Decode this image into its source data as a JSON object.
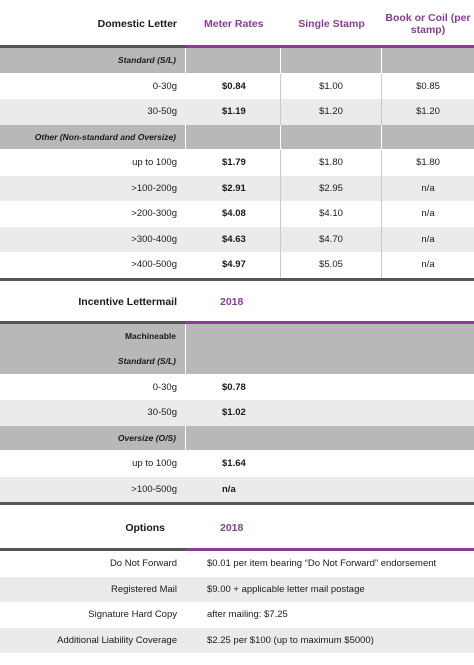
{
  "domestic": {
    "header": {
      "title": "Domestic Letter",
      "col1": "Meter Rates",
      "col2": "Single Stamp",
      "col3": "Book or Coil (per stamp)"
    },
    "standard_label": "Standard (S/L)",
    "standard_rows": [
      {
        "weight": "0-30g",
        "meter": "$0.84",
        "single": "$1.00",
        "book": "$0.85"
      },
      {
        "weight": "30-50g",
        "meter": "$1.19",
        "single": "$1.20",
        "book": "$1.20"
      }
    ],
    "other_label": "Other (Non-standard and Oversize)",
    "other_rows": [
      {
        "weight": "up to 100g",
        "meter": "$1.79",
        "single": "$1.80",
        "book": "$1.80"
      },
      {
        "weight": ">100-200g",
        "meter": "$2.91",
        "single": "$2.95",
        "book": "n/a"
      },
      {
        "weight": ">200-300g",
        "meter": "$4.08",
        "single": "$4.10",
        "book": "n/a"
      },
      {
        "weight": ">300-400g",
        "meter": "$4.63",
        "single": "$4.70",
        "book": "n/a"
      },
      {
        "weight": ">400-500g",
        "meter": "$4.97",
        "single": "$5.05",
        "book": "n/a"
      }
    ]
  },
  "incentive": {
    "header": {
      "title": "Incentive Lettermail",
      "year": "2018"
    },
    "machineable_label": "Machineable",
    "standard_label": "Standard (S/L)",
    "standard_rows": [
      {
        "weight": "0-30g",
        "rate": "$0.78"
      },
      {
        "weight": "30-50g",
        "rate": "$1.02"
      }
    ],
    "oversize_label": "Oversize (O/S)",
    "oversize_rows": [
      {
        "weight": "up to 100g",
        "rate": "$1.64"
      },
      {
        "weight": ">100-500g",
        "rate": "n/a"
      }
    ]
  },
  "options": {
    "header": {
      "title": "Options",
      "year": "2018"
    },
    "rows": [
      {
        "name": "Do Not Forward",
        "value": "$0.01 per item bearing “Do Not Forward” endorsement"
      },
      {
        "name": "Registered Mail",
        "value": "$9.00 + applicable letter mail postage"
      },
      {
        "name": "Signature Hard Copy",
        "value": "after mailing: $7.25"
      },
      {
        "name": "Additional Liability Coverage",
        "value": "$2.25 per $100 (up to maximum $5000)"
      }
    ]
  },
  "colors": {
    "accent": "#8a3c9a",
    "header_gray": "#b8b8b8",
    "row_alt": "#ebebeb",
    "rule_dark": "#555555"
  }
}
